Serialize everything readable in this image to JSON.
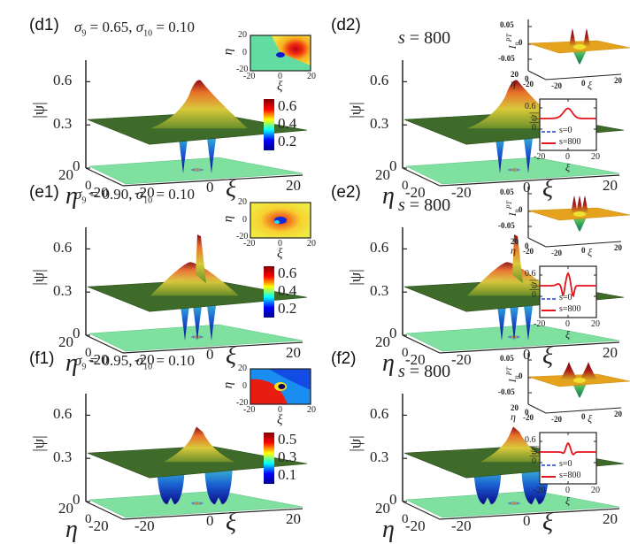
{
  "figure": {
    "colormap": [
      "#00008f",
      "#0000ff",
      "#00ffff",
      "#ffff00",
      "#ff0000",
      "#800000"
    ],
    "surface_colors": {
      "plateau": "#3f6b2a",
      "plateau_edge": "#2c4e1c",
      "base_plane": "#7fe0a0",
      "inpt_plane": "#e5a21c"
    },
    "line_colors": {
      "s0": "#1f3fd8",
      "s800": "#e8141c"
    }
  },
  "rows": [
    {
      "left": {
        "label": "(d1)",
        "param_text": "σ9 = 0.65, σ10 = 0.10",
        "sigma9": 0.65,
        "sigma10": 0.1,
        "zlabel": "|ψ|",
        "xlabel": "ξ",
        "ylabel": "η",
        "zticks": [
          "0.6",
          "0.3",
          "0"
        ],
        "xticks": [
          "-20",
          "0",
          "20"
        ],
        "yticks": [
          "20",
          "0",
          "-20"
        ],
        "peak_height": 0.62,
        "dips": 2,
        "dip_width": "narrow",
        "phase_inset": {
          "ylabel": "η",
          "xlabel": "ξ",
          "yticks": [
            "20",
            "0",
            "-20"
          ],
          "xticks": [
            "-20",
            "0",
            "20"
          ],
          "style": "d"
        },
        "colorbar": {
          "ticks": [
            "0.6",
            "0.4",
            "0.2"
          ]
        }
      },
      "right": {
        "label": "(d2)",
        "s_text": "s = 800",
        "zlabel": "|ψ|",
        "xlabel": "ξ",
        "ylabel": "η",
        "zticks": [
          "0.6",
          "0.3",
          "0"
        ],
        "xticks": [
          "-20",
          "0",
          "20"
        ],
        "yticks": [
          "20",
          "0",
          "-20"
        ],
        "peak_height": 0.62,
        "dips": 2,
        "dip_width": "narrow",
        "inpt_inset": {
          "zlabel": "I_n^PT",
          "zticks": [
            "0.05",
            "0",
            "-0.05"
          ],
          "xticks": [
            "-20",
            "0",
            "20"
          ],
          "yticks": [
            "20",
            "0",
            "-20"
          ],
          "xlabel": "ξ",
          "ylabel": "η",
          "peaks": 2
        },
        "profile_inset": {
          "ylabel": "|ψ|",
          "xlabel": "ξ",
          "yticks": [
            "0.6",
            "0"
          ],
          "xticks": [
            "-20",
            "0",
            "20"
          ],
          "legend": [
            "s=0",
            "s=800"
          ],
          "shape": "bump"
        }
      }
    },
    {
      "left": {
        "label": "(e1)",
        "param_text": "σ9 = 0.90, σ10 = 0.10",
        "sigma9": 0.9,
        "sigma10": 0.1,
        "zlabel": "|ψ|",
        "xlabel": "ξ",
        "ylabel": "η",
        "zticks": [
          "0.6",
          "0.3",
          "0"
        ],
        "xticks": [
          "-20",
          "0",
          "20"
        ],
        "yticks": [
          "20",
          "0",
          "-20"
        ],
        "peak_height": 0.7,
        "dips": 3,
        "dip_width": "narrow",
        "phase_inset": {
          "ylabel": "η",
          "xlabel": "ξ",
          "yticks": [
            "20",
            "0",
            "-20"
          ],
          "xticks": [
            "-20",
            "0",
            "20"
          ],
          "style": "e"
        },
        "colorbar": {
          "ticks": [
            "0.6",
            "0.4",
            "0.2"
          ]
        }
      },
      "right": {
        "label": "(e2)",
        "s_text": "s = 800",
        "zlabel": "|ψ|",
        "xlabel": "ξ",
        "ylabel": "η",
        "zticks": [
          "0.6",
          "0.3",
          "0"
        ],
        "xticks": [
          "-20",
          "0",
          "20"
        ],
        "yticks": [
          "20",
          "0",
          "-20"
        ],
        "peak_height": 0.7,
        "dips": 3,
        "dip_width": "narrow",
        "inpt_inset": {
          "zlabel": "I_n^PT",
          "zticks": [
            "0.05",
            "0",
            "-0.05"
          ],
          "xticks": [
            "-20",
            "0",
            "20"
          ],
          "yticks": [
            "20",
            "0",
            "-20"
          ],
          "xlabel": "ξ",
          "ylabel": "η",
          "peaks": 3
        },
        "profile_inset": {
          "ylabel": "|ψ|",
          "xlabel": "ξ",
          "yticks": [
            "0.6",
            "0"
          ],
          "xticks": [
            "-20",
            "0",
            "20"
          ],
          "legend": [
            "s=0",
            "s=800"
          ],
          "shape": "oscillating"
        }
      }
    },
    {
      "left": {
        "label": "(f1)",
        "param_text": "σ9 = 0.95, σ10 = 0.10",
        "sigma9": 0.95,
        "sigma10": 0.1,
        "zlabel": "|ψ|",
        "xlabel": "ξ",
        "ylabel": "η",
        "zticks": [
          "0.6",
          "0.3",
          "0"
        ],
        "xticks": [
          "-20",
          "0",
          "20"
        ],
        "yticks": [
          "20",
          "0",
          "-20"
        ],
        "peak_height": 0.52,
        "dips": 2,
        "dip_width": "wide",
        "phase_inset": {
          "ylabel": "η",
          "xlabel": "ξ",
          "yticks": [
            "20",
            "0",
            "-20"
          ],
          "xticks": [
            "-20",
            "0",
            "20"
          ],
          "style": "f"
        },
        "colorbar": {
          "ticks": [
            "0.5",
            "0.3",
            "0.1"
          ]
        }
      },
      "right": {
        "label": "(f2)",
        "s_text": "s = 800",
        "zlabel": "|ψ|",
        "xlabel": "ξ",
        "ylabel": "η",
        "zticks": [
          "0.6",
          "0.3",
          "0"
        ],
        "xticks": [
          "-20",
          "0",
          "20"
        ],
        "yticks": [
          "20",
          "0",
          "-20"
        ],
        "peak_height": 0.52,
        "dips": 2,
        "dip_width": "wide",
        "inpt_inset": {
          "zlabel": "I_n^PT",
          "zticks": [
            "0.05",
            "0",
            "-0.05"
          ],
          "xticks": [
            "-20",
            "0",
            "20"
          ],
          "yticks": [
            "20",
            "0",
            "-20"
          ],
          "xlabel": "ξ",
          "ylabel": "η",
          "peaks": 2
        },
        "profile_inset": {
          "ylabel": "|ψ|",
          "xlabel": "ξ",
          "yticks": [
            "0.6",
            "0"
          ],
          "xticks": [
            "-20",
            "0",
            "20"
          ],
          "legend": [
            "s=0",
            "s=800"
          ],
          "shape": "asym"
        }
      }
    }
  ],
  "chart_data": [
    {
      "type": "surface",
      "panel": "d1",
      "title": "σ9 = 0.65, σ10 = 0.10",
      "zlabel": "|ψ|",
      "xlabel": "ξ",
      "ylabel": "η",
      "xlim": [
        -20,
        20
      ],
      "ylim": [
        -20,
        20
      ],
      "zticks": [
        0,
        0.3,
        0.6
      ],
      "background_level": 0.3,
      "peak": 0.62,
      "colorbar": [
        0.2,
        0.4,
        0.6
      ]
    },
    {
      "type": "surface",
      "panel": "d2",
      "title": "s = 800",
      "zlabel": "|ψ|",
      "xlabel": "ξ",
      "ylabel": "η",
      "xlim": [
        -20,
        20
      ],
      "ylim": [
        -20,
        20
      ],
      "zticks": [
        0,
        0.3,
        0.6
      ],
      "background_level": 0.3,
      "peak": 0.62,
      "insets": [
        {
          "type": "surface",
          "zlabel": "I_n^PT",
          "zticks": [
            -0.05,
            0,
            0.05
          ]
        },
        {
          "type": "line",
          "xlabel": "ξ",
          "ylabel": "|ψ|",
          "xlim": [
            -20,
            20
          ],
          "yticks": [
            0,
            0.6
          ],
          "series": [
            {
              "name": "s=0",
              "style": "dashed",
              "color": "#1f3fd8"
            },
            {
              "name": "s=800",
              "style": "solid",
              "color": "#e8141c"
            }
          ]
        }
      ]
    },
    {
      "type": "surface",
      "panel": "e1",
      "title": "σ9 = 0.90, σ10 = 0.10",
      "zlabel": "|ψ|",
      "xlabel": "ξ",
      "ylabel": "η",
      "xlim": [
        -20,
        20
      ],
      "ylim": [
        -20,
        20
      ],
      "zticks": [
        0,
        0.3,
        0.6
      ],
      "background_level": 0.3,
      "peak": 0.7,
      "colorbar": [
        0.2,
        0.4,
        0.6
      ]
    },
    {
      "type": "surface",
      "panel": "e2",
      "title": "s = 800",
      "zlabel": "|ψ|",
      "xlabel": "ξ",
      "ylabel": "η",
      "xlim": [
        -20,
        20
      ],
      "ylim": [
        -20,
        20
      ],
      "zticks": [
        0,
        0.3,
        0.6
      ],
      "background_level": 0.3,
      "peak": 0.7,
      "insets": [
        {
          "type": "surface",
          "zlabel": "I_n^PT",
          "zticks": [
            -0.05,
            0,
            0.05
          ]
        },
        {
          "type": "line",
          "xlabel": "ξ",
          "ylabel": "|ψ|",
          "xlim": [
            -20,
            20
          ],
          "yticks": [
            0,
            0.6
          ],
          "series": [
            {
              "name": "s=0",
              "style": "dashed",
              "color": "#1f3fd8"
            },
            {
              "name": "s=800",
              "style": "solid",
              "color": "#e8141c"
            }
          ]
        }
      ]
    },
    {
      "type": "surface",
      "panel": "f1",
      "title": "σ9 = 0.95, σ10 = 0.10",
      "zlabel": "|ψ|",
      "xlabel": "ξ",
      "ylabel": "η",
      "xlim": [
        -20,
        20
      ],
      "ylim": [
        -20,
        20
      ],
      "zticks": [
        0,
        0.3,
        0.6
      ],
      "background_level": 0.3,
      "peak": 0.52,
      "colorbar": [
        0.1,
        0.3,
        0.5
      ]
    },
    {
      "type": "surface",
      "panel": "f2",
      "title": "s = 800",
      "zlabel": "|ψ|",
      "xlabel": "ξ",
      "ylabel": "η",
      "xlim": [
        -20,
        20
      ],
      "ylim": [
        -20,
        20
      ],
      "zticks": [
        0,
        0.3,
        0.6
      ],
      "background_level": 0.3,
      "peak": 0.52,
      "insets": [
        {
          "type": "surface",
          "zlabel": "I_n^PT",
          "zticks": [
            -0.05,
            0,
            0.05
          ]
        },
        {
          "type": "line",
          "xlabel": "ξ",
          "ylabel": "|ψ|",
          "xlim": [
            -20,
            20
          ],
          "yticks": [
            0,
            0.6
          ],
          "series": [
            {
              "name": "s=0",
              "style": "dashed",
              "color": "#1f3fd8"
            },
            {
              "name": "s=800",
              "style": "solid",
              "color": "#e8141c"
            }
          ]
        }
      ]
    }
  ]
}
